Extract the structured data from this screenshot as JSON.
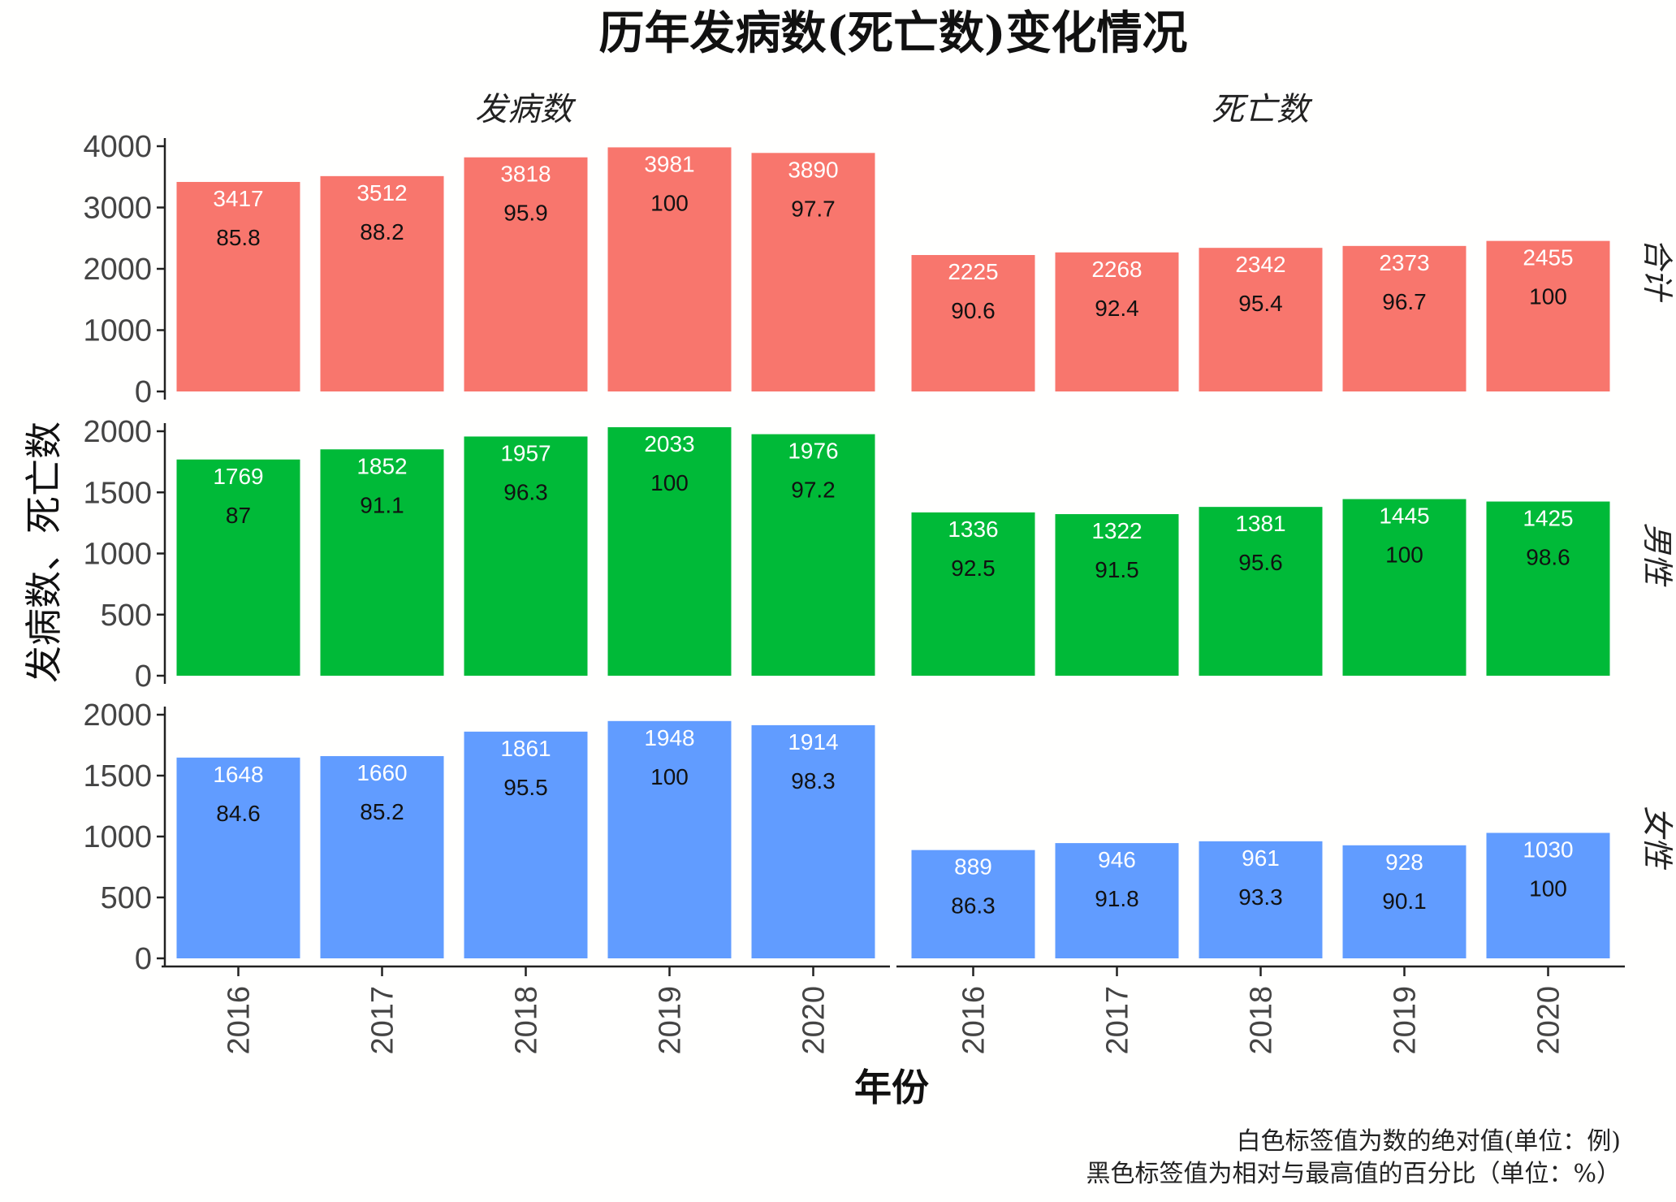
{
  "chart_data": {
    "type": "bar",
    "title": "历年发病数(死亡数)变化情况",
    "xlabel": "年份",
    "ylabel": "发病数、死亡数",
    "categories": [
      "2016",
      "2017",
      "2018",
      "2019",
      "2020"
    ],
    "columns": [
      "发病数",
      "死亡数"
    ],
    "captions": [
      "白色标签值为数的绝对值(单位：例)",
      "黑色标签值为相对与最高值的百分比（单位：%）"
    ],
    "panels": [
      {
        "row": "合计",
        "color": "#F8766D",
        "ylim": [
          0,
          4000
        ],
        "yticks": [
          0,
          1000,
          2000,
          3000,
          4000
        ],
        "series": [
          {
            "column": "发病数",
            "values": [
              3417,
              3512,
              3818,
              3981,
              3890
            ],
            "percent": [
              "85.8",
              "88.2",
              "95.9",
              "100",
              "97.7"
            ]
          },
          {
            "column": "死亡数",
            "values": [
              2225,
              2268,
              2342,
              2373,
              2455
            ],
            "percent": [
              "90.6",
              "92.4",
              "95.4",
              "96.7",
              "100"
            ]
          }
        ]
      },
      {
        "row": "男性",
        "color": "#00BA38",
        "ylim": [
          0,
          2000
        ],
        "yticks": [
          0,
          500,
          1000,
          1500,
          2000
        ],
        "series": [
          {
            "column": "发病数",
            "values": [
              1769,
              1852,
              1957,
              2033,
              1976
            ],
            "percent": [
              "87",
              "91.1",
              "96.3",
              "100",
              "97.2"
            ]
          },
          {
            "column": "死亡数",
            "values": [
              1336,
              1322,
              1381,
              1445,
              1425
            ],
            "percent": [
              "92.5",
              "91.5",
              "95.6",
              "100",
              "98.6"
            ]
          }
        ]
      },
      {
        "row": "女性",
        "color": "#619CFF",
        "ylim": [
          0,
          2000
        ],
        "yticks": [
          0,
          500,
          1000,
          1500,
          2000
        ],
        "series": [
          {
            "column": "发病数",
            "values": [
              1648,
              1660,
              1861,
              1948,
              1914
            ],
            "percent": [
              "84.6",
              "85.2",
              "95.5",
              "100",
              "98.3"
            ]
          },
          {
            "column": "死亡数",
            "values": [
              889,
              946,
              961,
              928,
              1030
            ],
            "percent": [
              "86.3",
              "91.8",
              "93.3",
              "90.1",
              "100"
            ]
          }
        ]
      }
    ]
  }
}
